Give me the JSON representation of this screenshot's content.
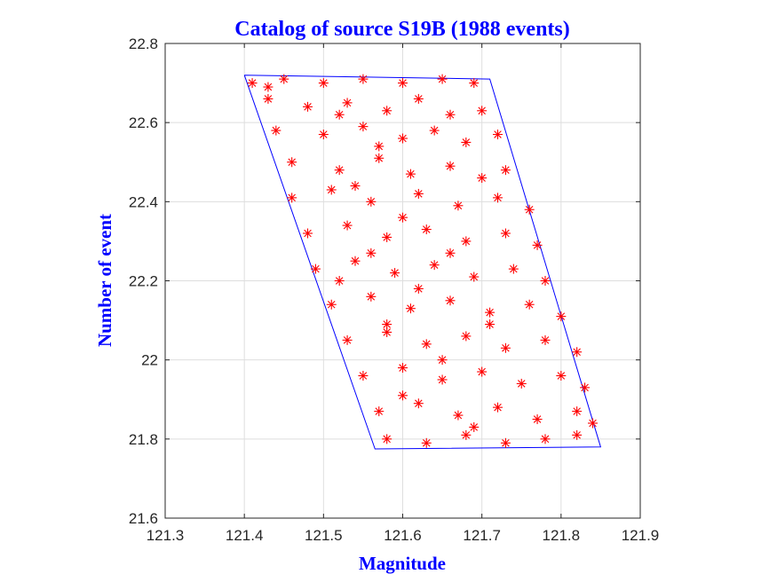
{
  "chart_data": {
    "type": "scatter",
    "title": "Catalog of source S19B (1988 events)",
    "xlabel": "Magnitude",
    "ylabel": "Number of event",
    "xlim": [
      121.3,
      121.9
    ],
    "ylim": [
      21.6,
      22.8
    ],
    "xticks": [
      121.3,
      121.4,
      121.5,
      121.6,
      121.7,
      121.8,
      121.9
    ],
    "yticks": [
      21.6,
      21.8,
      22.0,
      22.2,
      22.4,
      22.6,
      22.8
    ],
    "xtick_labels": [
      "121.3",
      "121.4",
      "121.5",
      "121.6",
      "121.7",
      "121.8",
      "121.9"
    ],
    "ytick_labels": [
      "21.6",
      "21.8",
      "22",
      "22.2",
      "22.4",
      "22.6",
      "22.8"
    ],
    "grid": true,
    "event_count": 1988,
    "series": [
      {
        "marker": "asterisk",
        "color": "#ff0000",
        "points": [
          [
            121.41,
            22.7
          ],
          [
            121.45,
            22.71
          ],
          [
            121.5,
            22.7
          ],
          [
            121.55,
            22.71
          ],
          [
            121.6,
            22.7
          ],
          [
            121.65,
            22.71
          ],
          [
            121.69,
            22.7
          ],
          [
            121.43,
            22.66
          ],
          [
            121.48,
            22.64
          ],
          [
            121.53,
            22.65
          ],
          [
            121.58,
            22.63
          ],
          [
            121.62,
            22.66
          ],
          [
            121.66,
            22.62
          ],
          [
            121.7,
            22.63
          ],
          [
            121.44,
            22.58
          ],
          [
            121.5,
            22.57
          ],
          [
            121.55,
            22.59
          ],
          [
            121.6,
            22.56
          ],
          [
            121.64,
            22.58
          ],
          [
            121.68,
            22.55
          ],
          [
            121.72,
            22.57
          ],
          [
            121.46,
            22.5
          ],
          [
            121.52,
            22.48
          ],
          [
            121.57,
            22.51
          ],
          [
            121.61,
            22.47
          ],
          [
            121.66,
            22.49
          ],
          [
            121.7,
            22.46
          ],
          [
            121.73,
            22.48
          ],
          [
            121.46,
            22.41
          ],
          [
            121.51,
            22.43
          ],
          [
            121.56,
            22.4
          ],
          [
            121.62,
            22.42
          ],
          [
            121.67,
            22.39
          ],
          [
            121.72,
            22.41
          ],
          [
            121.76,
            22.38
          ],
          [
            121.48,
            22.32
          ],
          [
            121.53,
            22.34
          ],
          [
            121.58,
            22.31
          ],
          [
            121.63,
            22.33
          ],
          [
            121.68,
            22.3
          ],
          [
            121.73,
            22.32
          ],
          [
            121.77,
            22.29
          ],
          [
            121.49,
            22.23
          ],
          [
            121.54,
            22.25
          ],
          [
            121.59,
            22.22
          ],
          [
            121.64,
            22.24
          ],
          [
            121.69,
            22.21
          ],
          [
            121.74,
            22.23
          ],
          [
            121.78,
            22.2
          ],
          [
            121.51,
            22.14
          ],
          [
            121.56,
            22.16
          ],
          [
            121.61,
            22.13
          ],
          [
            121.66,
            22.15
          ],
          [
            121.71,
            22.12
          ],
          [
            121.76,
            22.14
          ],
          [
            121.8,
            22.11
          ],
          [
            121.53,
            22.05
          ],
          [
            121.58,
            22.07
          ],
          [
            121.63,
            22.04
          ],
          [
            121.68,
            22.06
          ],
          [
            121.73,
            22.03
          ],
          [
            121.78,
            22.05
          ],
          [
            121.82,
            22.02
          ],
          [
            121.55,
            21.96
          ],
          [
            121.6,
            21.98
          ],
          [
            121.65,
            21.95
          ],
          [
            121.7,
            21.97
          ],
          [
            121.75,
            21.94
          ],
          [
            121.8,
            21.96
          ],
          [
            121.83,
            21.93
          ],
          [
            121.57,
            21.87
          ],
          [
            121.62,
            21.89
          ],
          [
            121.67,
            21.86
          ],
          [
            121.72,
            21.88
          ],
          [
            121.77,
            21.85
          ],
          [
            121.82,
            21.87
          ],
          [
            121.84,
            21.84
          ],
          [
            121.58,
            21.8
          ],
          [
            121.63,
            21.79
          ],
          [
            121.68,
            21.81
          ],
          [
            121.73,
            21.79
          ],
          [
            121.78,
            21.8
          ],
          [
            121.82,
            21.81
          ],
          [
            121.43,
            22.69
          ],
          [
            121.52,
            22.62
          ],
          [
            121.57,
            22.54
          ],
          [
            121.54,
            22.44
          ],
          [
            121.6,
            22.36
          ],
          [
            121.56,
            22.27
          ],
          [
            121.62,
            22.18
          ],
          [
            121.58,
            22.09
          ],
          [
            121.65,
            22.0
          ],
          [
            121.6,
            21.91
          ],
          [
            121.69,
            21.83
          ],
          [
            121.66,
            22.27
          ],
          [
            121.71,
            22.09
          ],
          [
            121.52,
            22.2
          ]
        ]
      }
    ],
    "boundary_polygon": {
      "color": "#0000ff",
      "vertices": [
        [
          121.4,
          22.72
        ],
        [
          121.71,
          22.71
        ],
        [
          121.85,
          21.78
        ],
        [
          121.565,
          21.775
        ],
        [
          121.4,
          22.72
        ]
      ]
    }
  }
}
